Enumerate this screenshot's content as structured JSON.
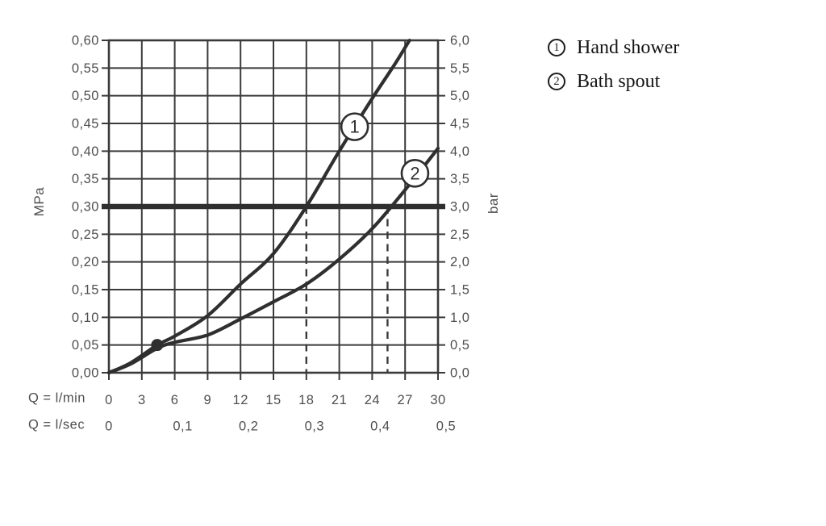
{
  "legend": {
    "items": [
      {
        "symbol": "1",
        "label": "Hand shower"
      },
      {
        "symbol": "2",
        "label": "Bath spout"
      }
    ]
  },
  "chart_data": {
    "type": "line",
    "title": "",
    "x_axis": {
      "row1_label": "Q = l/min",
      "row2_label": "Q = l/sec",
      "range_lmin": [
        0,
        30
      ],
      "lmin_ticks": [
        0,
        3,
        6,
        9,
        12,
        15,
        18,
        21,
        24,
        27,
        30
      ],
      "lmin_tick_labels": [
        "0",
        "3",
        "6",
        "9",
        "12",
        "15",
        "18",
        "21",
        "24",
        "27",
        "30"
      ],
      "lsec_ticks": [
        {
          "q": 0,
          "label": "0"
        },
        {
          "q": 6,
          "label": "0,1"
        },
        {
          "q": 12,
          "label": "0,2"
        },
        {
          "q": 18,
          "label": "0,3"
        },
        {
          "q": 24,
          "label": "0,4"
        },
        {
          "q": 30,
          "label": "0,5"
        }
      ]
    },
    "y_axis_left": {
      "label": "MPa",
      "range_mpa": [
        0,
        0.6
      ],
      "tick_labels": [
        "0,60",
        "0,55",
        "0,50",
        "0,45",
        "0,40",
        "0,35",
        "0,30",
        "0,25",
        "0,20",
        "0,15",
        "0,10",
        "0,05",
        "0,00"
      ]
    },
    "y_axis_right": {
      "label": "bar",
      "range_bar": [
        0,
        6.0
      ],
      "tick_labels": [
        "6,0",
        "5,5",
        "5,0",
        "4,5",
        "4,0",
        "3,5",
        "3,0",
        "2,5",
        "2,0",
        "1,5",
        "1,0",
        "0,5",
        "0,0"
      ]
    },
    "grid": {
      "x_step_lmin": 3,
      "y_step_bar": 0.5
    },
    "reference_line_bar": 3.0,
    "dashed_guides_lmin": [
      18,
      25.4
    ],
    "operating_point": {
      "q_lmin": 4.4,
      "p_bar": 0.5
    },
    "series": [
      {
        "id": "1",
        "name": "Hand shower",
        "marker_pos": {
          "q_lmin": 22.4,
          "p_bar": 4.44
        },
        "points_lmin_bar": [
          [
            0,
            0
          ],
          [
            2,
            0.18
          ],
          [
            4.4,
            0.5
          ],
          [
            6,
            0.66
          ],
          [
            9,
            1.03
          ],
          [
            12,
            1.6
          ],
          [
            15,
            2.15
          ],
          [
            18,
            3.0
          ],
          [
            21,
            4.0
          ],
          [
            24,
            4.95
          ],
          [
            26,
            5.55
          ],
          [
            27.4,
            6.0
          ]
        ]
      },
      {
        "id": "2",
        "name": "Bath spout",
        "marker_pos": {
          "q_lmin": 27.9,
          "p_bar": 3.6
        },
        "points_lmin_bar": [
          [
            0,
            0
          ],
          [
            2,
            0.16
          ],
          [
            4.4,
            0.44
          ],
          [
            6,
            0.55
          ],
          [
            9,
            0.68
          ],
          [
            12,
            0.97
          ],
          [
            15,
            1.28
          ],
          [
            18,
            1.6
          ],
          [
            21,
            2.05
          ],
          [
            24,
            2.6
          ],
          [
            27,
            3.3
          ],
          [
            30,
            4.05
          ]
        ]
      }
    ],
    "colors": {
      "line": "#3a3a3a",
      "curve": "#2f2f2f",
      "text": "#4f4f4f",
      "legend_text": "#141414",
      "background": "#ffffff"
    }
  }
}
